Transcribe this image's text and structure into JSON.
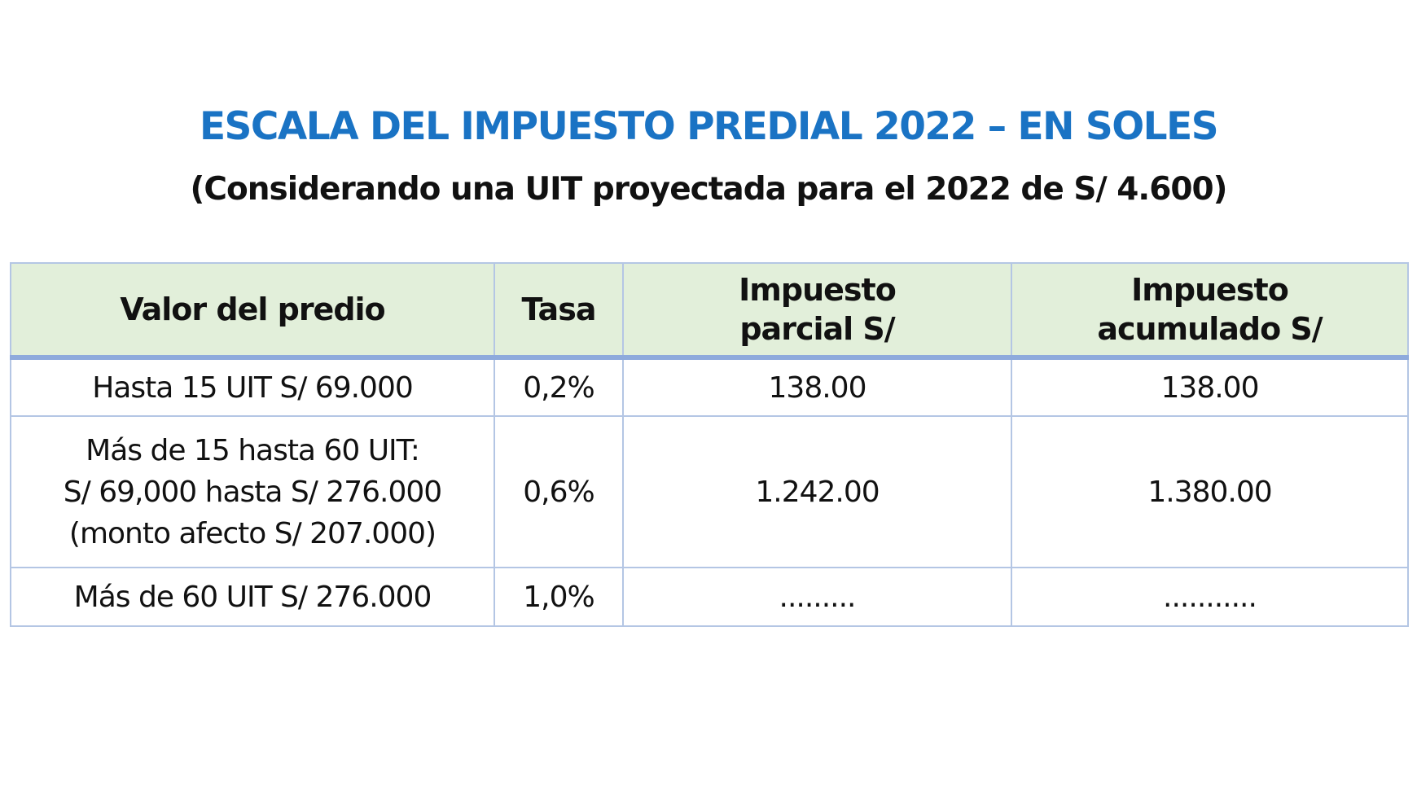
{
  "title": "ESCALA DEL IMPUESTO PREDIAL 2022 – EN SOLES",
  "subtitle": "(Considerando una UIT proyectada para el 2022 de S/ 4.600)",
  "colors": {
    "title": "#1a73c4",
    "header_bg": "#e2efda",
    "border": "#b4c6e4",
    "header_rule": "#8eaadc"
  },
  "table": {
    "headers": {
      "valor": "Valor del predio",
      "tasa": "Tasa",
      "parcial_line1": "Impuesto",
      "parcial_line2": "parcial S/",
      "acumulado_line1": "Impuesto",
      "acumulado_line2": "acumulado S/"
    },
    "rows": [
      {
        "valor_lines": [
          "Hasta 15 UIT S/ 69.000"
        ],
        "tasa": "0,2%",
        "parcial": "138.00",
        "acumulado": "138.00"
      },
      {
        "valor_lines": [
          "Más de 15 hasta 60 UIT:",
          "S/ 69,000 hasta S/ 276.000",
          "(monto afecto S/ 207.000)"
        ],
        "tasa": "0,6%",
        "parcial": "1.242.00",
        "acumulado": "1.380.00"
      },
      {
        "valor_lines": [
          "Más de 60 UIT S/ 276.000"
        ],
        "tasa": "1,0%",
        "parcial": ".........",
        "acumulado": "..........."
      }
    ]
  }
}
